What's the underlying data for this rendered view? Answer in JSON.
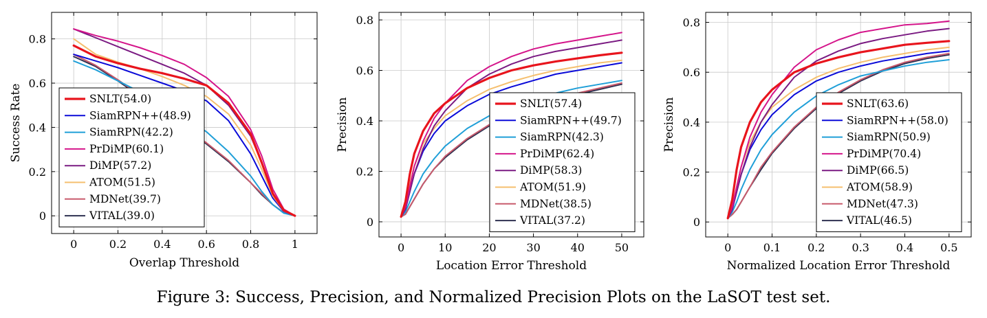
{
  "caption": "Figure 3: Success, Precision, and Normalized Precision Plots on the LaSOT test set.",
  "series_colors": {
    "SNLT": "#e8141c",
    "SiamRPN++": "#0a0ad8",
    "SiamRPN": "#1f9fd8",
    "PrDiMP": "#d4148a",
    "DiMP": "#7a1a82",
    "ATOM": "#f5bf6e",
    "MDNet": "#c85a6c",
    "VITAL": "#2e3050"
  },
  "chart_data": [
    {
      "type": "line",
      "xlabel": "Overlap Threshold",
      "ylabel": "Success Rate",
      "xlim": [
        -0.1,
        1.1
      ],
      "ylim": [
        -0.08,
        0.92
      ],
      "xticks": [
        0,
        0.2,
        0.4,
        0.6,
        0.8,
        1
      ],
      "xtick_labels": [
        "0",
        "0.2",
        "0.4",
        "0.6",
        "0.8",
        "1"
      ],
      "yticks": [
        0,
        0.2,
        0.4,
        0.6,
        0.8
      ],
      "ytick_labels": [
        "0",
        "0.2",
        "0.4",
        "0.6",
        "0.8"
      ],
      "grid": true,
      "legend_position": "bottom-left",
      "x": [
        0,
        0.1,
        0.2,
        0.3,
        0.4,
        0.5,
        0.6,
        0.7,
        0.8,
        0.85,
        0.9,
        0.95,
        1.0
      ],
      "series": [
        {
          "name": "SNLT",
          "legend": "SNLT(54.0)",
          "values": [
            0.77,
            0.72,
            0.69,
            0.665,
            0.645,
            0.62,
            0.59,
            0.51,
            0.37,
            0.24,
            0.1,
            0.025,
            0.0
          ]
        },
        {
          "name": "SiamRPN++",
          "legend": "SiamRPN++(48.9)",
          "values": [
            0.73,
            0.7,
            0.67,
            0.635,
            0.6,
            0.565,
            0.52,
            0.43,
            0.28,
            0.18,
            0.08,
            0.02,
            0.0
          ]
        },
        {
          "name": "SiamRPN",
          "legend": "SiamRPN(42.2)",
          "values": [
            0.7,
            0.66,
            0.61,
            0.56,
            0.51,
            0.45,
            0.38,
            0.29,
            0.18,
            0.11,
            0.05,
            0.012,
            0.0
          ]
        },
        {
          "name": "PrDiMP",
          "legend": "PrDiMP(60.1)",
          "values": [
            0.845,
            0.815,
            0.79,
            0.76,
            0.725,
            0.685,
            0.625,
            0.54,
            0.39,
            0.27,
            0.12,
            0.03,
            0.0
          ]
        },
        {
          "name": "DiMP",
          "legend": "DiMP(57.2)",
          "values": [
            0.845,
            0.805,
            0.765,
            0.725,
            0.685,
            0.645,
            0.59,
            0.5,
            0.36,
            0.24,
            0.1,
            0.025,
            0.0
          ]
        },
        {
          "name": "ATOM",
          "legend": "ATOM(51.5)",
          "values": [
            0.8,
            0.73,
            0.695,
            0.665,
            0.63,
            0.59,
            0.54,
            0.46,
            0.32,
            0.21,
            0.09,
            0.022,
            0.0
          ]
        },
        {
          "name": "MDNet",
          "legend": "MDNet(39.7)",
          "values": [
            0.73,
            0.68,
            0.615,
            0.545,
            0.47,
            0.4,
            0.33,
            0.25,
            0.15,
            0.1,
            0.05,
            0.014,
            0.0
          ]
        },
        {
          "name": "VITAL",
          "legend": "VITAL(39.0)",
          "values": [
            0.72,
            0.675,
            0.61,
            0.54,
            0.465,
            0.395,
            0.325,
            0.245,
            0.15,
            0.095,
            0.05,
            0.014,
            0.0
          ]
        }
      ]
    },
    {
      "type": "line",
      "xlabel": "Location Error Threshold",
      "ylabel": "Precision",
      "xlim": [
        -5,
        55
      ],
      "ylim": [
        -0.06,
        0.83
      ],
      "xticks": [
        0,
        10,
        20,
        30,
        40,
        50
      ],
      "xtick_labels": [
        "0",
        "10",
        "20",
        "30",
        "40",
        "50"
      ],
      "yticks": [
        0,
        0.2,
        0.4,
        0.6,
        0.8
      ],
      "ytick_labels": [
        "0",
        "0.2",
        "0.4",
        "0.6",
        "0.8"
      ],
      "grid": true,
      "legend_position": "bottom-right",
      "x": [
        0,
        1,
        2,
        3,
        5,
        7.5,
        10,
        15,
        20,
        25,
        30,
        35,
        40,
        45,
        50
      ],
      "series": [
        {
          "name": "SNLT",
          "legend": "SNLT(57.4)",
          "values": [
            0.02,
            0.08,
            0.19,
            0.27,
            0.36,
            0.43,
            0.47,
            0.53,
            0.57,
            0.6,
            0.62,
            0.635,
            0.648,
            0.66,
            0.67
          ]
        },
        {
          "name": "SiamRPN++",
          "legend": "SiamRPN++(49.7)",
          "values": [
            0.02,
            0.05,
            0.12,
            0.19,
            0.28,
            0.35,
            0.4,
            0.46,
            0.505,
            0.535,
            0.56,
            0.585,
            0.6,
            0.615,
            0.63
          ]
        },
        {
          "name": "SiamRPN",
          "legend": "SiamRPN(42.3)",
          "values": [
            0.02,
            0.04,
            0.08,
            0.12,
            0.19,
            0.25,
            0.3,
            0.37,
            0.42,
            0.46,
            0.49,
            0.51,
            0.53,
            0.545,
            0.56
          ]
        },
        {
          "name": "PrDiMP",
          "legend": "PrDiMP(62.4)",
          "values": [
            0.02,
            0.06,
            0.14,
            0.22,
            0.32,
            0.41,
            0.47,
            0.56,
            0.615,
            0.655,
            0.685,
            0.705,
            0.72,
            0.735,
            0.75
          ]
        },
        {
          "name": "DiMP",
          "legend": "DiMP(58.3)",
          "values": [
            0.02,
            0.05,
            0.12,
            0.19,
            0.29,
            0.38,
            0.44,
            0.53,
            0.585,
            0.625,
            0.655,
            0.675,
            0.69,
            0.705,
            0.72
          ]
        },
        {
          "name": "ATOM",
          "legend": "ATOM(51.9)",
          "values": [
            0.02,
            0.06,
            0.15,
            0.22,
            0.31,
            0.37,
            0.42,
            0.48,
            0.525,
            0.555,
            0.58,
            0.6,
            0.615,
            0.63,
            0.64
          ]
        },
        {
          "name": "MDNet",
          "legend": "MDNet(38.5)",
          "values": [
            0.02,
            0.03,
            0.06,
            0.09,
            0.15,
            0.21,
            0.26,
            0.33,
            0.385,
            0.425,
            0.46,
            0.49,
            0.51,
            0.53,
            0.55
          ]
        },
        {
          "name": "VITAL",
          "legend": "VITAL(37.2)",
          "values": [
            0.02,
            0.03,
            0.06,
            0.09,
            0.15,
            0.21,
            0.255,
            0.325,
            0.38,
            0.42,
            0.455,
            0.485,
            0.505,
            0.525,
            0.545
          ]
        }
      ]
    },
    {
      "type": "line",
      "xlabel": "Normalized Location Error Threshold",
      "ylabel": "Precision",
      "xlim": [
        -0.05,
        0.55
      ],
      "ylim": [
        -0.06,
        0.84
      ],
      "xticks": [
        0,
        0.1,
        0.2,
        0.3,
        0.4,
        0.5
      ],
      "xtick_labels": [
        "0",
        "0.1",
        "0.2",
        "0.3",
        "0.4",
        "0.5"
      ],
      "yticks": [
        0,
        0.2,
        0.4,
        0.6,
        0.8
      ],
      "ytick_labels": [
        "0",
        "0.2",
        "0.4",
        "0.6",
        "0.8"
      ],
      "grid": true,
      "legend_position": "bottom-right",
      "x": [
        0,
        0.01,
        0.02,
        0.03,
        0.05,
        0.075,
        0.1,
        0.15,
        0.2,
        0.25,
        0.3,
        0.35,
        0.4,
        0.45,
        0.5
      ],
      "series": [
        {
          "name": "SNLT",
          "legend": "SNLT(63.6)",
          "values": [
            0.015,
            0.09,
            0.21,
            0.3,
            0.4,
            0.48,
            0.53,
            0.6,
            0.635,
            0.66,
            0.68,
            0.695,
            0.71,
            0.718,
            0.725
          ]
        },
        {
          "name": "SiamRPN++",
          "legend": "SiamRPN++(58.0)",
          "values": [
            0.015,
            0.05,
            0.12,
            0.19,
            0.29,
            0.37,
            0.43,
            0.51,
            0.565,
            0.6,
            0.625,
            0.645,
            0.66,
            0.675,
            0.685
          ]
        },
        {
          "name": "SiamRPN",
          "legend": "SiamRPN(50.9)",
          "values": [
            0.015,
            0.04,
            0.08,
            0.13,
            0.21,
            0.29,
            0.35,
            0.44,
            0.505,
            0.55,
            0.585,
            0.605,
            0.625,
            0.64,
            0.65
          ]
        },
        {
          "name": "PrDiMP",
          "legend": "PrDiMP(70.4)",
          "values": [
            0.015,
            0.06,
            0.14,
            0.22,
            0.34,
            0.44,
            0.51,
            0.62,
            0.69,
            0.73,
            0.76,
            0.775,
            0.79,
            0.795,
            0.805
          ]
        },
        {
          "name": "DiMP",
          "legend": "DiMP(66.5)",
          "values": [
            0.015,
            0.05,
            0.12,
            0.19,
            0.3,
            0.4,
            0.47,
            0.58,
            0.645,
            0.685,
            0.715,
            0.735,
            0.75,
            0.765,
            0.775
          ]
        },
        {
          "name": "ATOM",
          "legend": "ATOM(58.9)",
          "values": [
            0.015,
            0.06,
            0.14,
            0.22,
            0.32,
            0.4,
            0.46,
            0.53,
            0.58,
            0.615,
            0.64,
            0.66,
            0.675,
            0.69,
            0.7
          ]
        },
        {
          "name": "MDNet",
          "legend": "MDNet(47.3)",
          "values": [
            0.015,
            0.03,
            0.05,
            0.08,
            0.14,
            0.22,
            0.28,
            0.38,
            0.46,
            0.52,
            0.57,
            0.61,
            0.64,
            0.66,
            0.675
          ]
        },
        {
          "name": "VITAL",
          "legend": "VITAL(46.5)",
          "values": [
            0.015,
            0.03,
            0.05,
            0.08,
            0.14,
            0.21,
            0.275,
            0.375,
            0.455,
            0.515,
            0.565,
            0.605,
            0.635,
            0.655,
            0.67
          ]
        }
      ]
    }
  ]
}
